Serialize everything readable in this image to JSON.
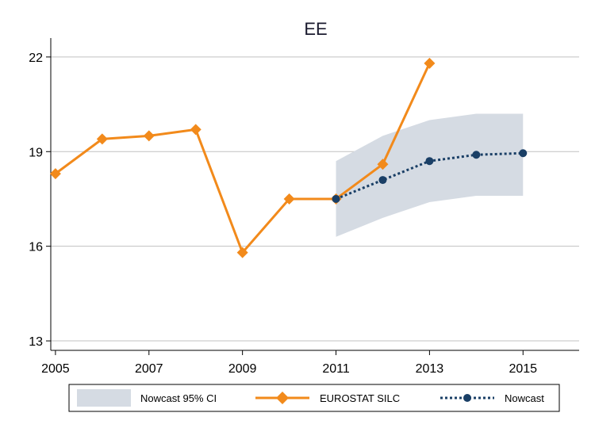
{
  "chart_data": {
    "type": "line",
    "title": "EE",
    "xlabel": "",
    "ylabel": "",
    "xlim": [
      2004.9,
      2016.2
    ],
    "ylim": [
      12.7,
      22.6
    ],
    "x_ticks": [
      2005,
      2007,
      2009,
      2011,
      2013,
      2015
    ],
    "x_tick_labels": [
      "2005",
      "2007",
      "2009",
      "2011",
      "2013",
      "2015"
    ],
    "y_ticks": [
      13,
      16,
      19,
      22
    ],
    "y_tick_labels": [
      "13",
      "16",
      "19",
      "22"
    ],
    "grid": "horizontal",
    "legend_position": "bottom",
    "colors": {
      "eurostat": "#f28a1b",
      "nowcast": "#1a3f66",
      "ci": "#d5dbe3",
      "grid": "#c0c0c0",
      "axis": "#000000",
      "legend_border": "#000000"
    },
    "series": [
      {
        "name": "EUROSTAT SILC",
        "style": "solid-diamond",
        "x": [
          2005,
          2006,
          2007,
          2008,
          2009,
          2010,
          2011,
          2012,
          2013
        ],
        "y": [
          18.3,
          19.4,
          19.5,
          19.7,
          15.8,
          17.5,
          17.5,
          18.6,
          21.8
        ]
      },
      {
        "name": "Nowcast",
        "style": "dotted-circle",
        "x": [
          2011,
          2012,
          2013,
          2014,
          2015
        ],
        "y": [
          17.5,
          18.1,
          18.7,
          18.9,
          18.95
        ]
      }
    ],
    "band": {
      "name": "Nowcast 95% CI",
      "x": [
        2011,
        2012,
        2013,
        2014,
        2015
      ],
      "lower": [
        16.3,
        16.9,
        17.4,
        17.6,
        17.6
      ],
      "upper": [
        18.7,
        19.5,
        20.0,
        20.2,
        20.2
      ]
    },
    "legend": [
      "Nowcast 95% CI",
      "EUROSTAT SILC",
      "Nowcast"
    ]
  }
}
